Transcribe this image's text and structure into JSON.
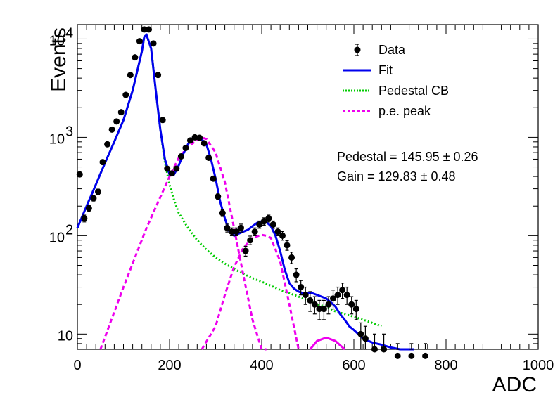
{
  "chart_data": {
    "type": "scatter",
    "xlabel": "ADC",
    "ylabel": "Events",
    "xlim": [
      0,
      1000
    ],
    "ylim": [
      7,
      14000
    ],
    "yscale": "log",
    "grid": false,
    "legend_position": "top-right",
    "x_ticks": [
      0,
      200,
      400,
      600,
      800,
      1000
    ],
    "x_tick_labels": [
      "0",
      "200",
      "400",
      "600",
      "800",
      "1000"
    ],
    "y_tick_labels": [
      {
        "value": 10,
        "mantissa": "10",
        "exponent": ""
      },
      {
        "value": 100,
        "mantissa": "10",
        "exponent": "2"
      },
      {
        "value": 1000,
        "mantissa": "10",
        "exponent": "3"
      },
      {
        "value": 10000,
        "mantissa": "10",
        "exponent": "4"
      }
    ],
    "legend": [
      {
        "label": "Data",
        "style": "marker",
        "color": "#000000"
      },
      {
        "label": "Fit",
        "style": "solid",
        "color": "#0000ee"
      },
      {
        "label": "Pedestal CB",
        "style": "dotted",
        "color": "#00cc00"
      },
      {
        "label": "p.e. peak",
        "style": "dashed",
        "color": "#ee00ee"
      }
    ],
    "annotations": [
      "Pedestal = 145.95 ± 0.26",
      "Gain = 129.83 ± 0.48"
    ],
    "colors": {
      "data": "#000000",
      "fit": "#0000ee",
      "pedestal": "#00cc00",
      "pe": "#ee00ee"
    },
    "data": {
      "x": [
        5,
        15,
        25,
        35,
        45,
        55,
        65,
        75,
        85,
        95,
        105,
        115,
        125,
        135,
        145,
        155,
        165,
        175,
        185,
        195,
        205,
        215,
        225,
        235,
        245,
        255,
        265,
        275,
        285,
        295,
        305,
        315,
        325,
        335,
        345,
        355,
        365,
        375,
        385,
        395,
        405,
        415,
        425,
        435,
        445,
        455,
        465,
        475,
        485,
        495,
        505,
        515,
        525,
        535,
        545,
        555,
        565,
        575,
        585,
        595,
        605,
        615,
        625,
        645,
        665,
        695,
        725,
        755
      ],
      "y": [
        420,
        150,
        190,
        240,
        280,
        560,
        850,
        1200,
        1450,
        1800,
        2700,
        4300,
        6500,
        9500,
        12500,
        12500,
        9000,
        4300,
        1500,
        480,
        430,
        480,
        640,
        780,
        930,
        1000,
        990,
        870,
        620,
        380,
        250,
        170,
        120,
        110,
        110,
        120,
        70,
        90,
        110,
        130,
        140,
        150,
        130,
        110,
        100,
        80,
        60,
        40,
        30,
        25,
        22,
        20,
        18,
        18,
        20,
        23,
        25,
        28,
        25,
        20,
        18,
        10,
        9,
        7,
        7,
        6,
        6,
        6
      ],
      "err": [
        20,
        12,
        14,
        15,
        17,
        24,
        29,
        35,
        38,
        42,
        52,
        66,
        81,
        97,
        112,
        112,
        95,
        66,
        39,
        22,
        21,
        22,
        25,
        28,
        30,
        32,
        31,
        30,
        25,
        19,
        16,
        13,
        11,
        10,
        10,
        11,
        8,
        9,
        10,
        11,
        12,
        12,
        11,
        10,
        10,
        9,
        8,
        6,
        5,
        5,
        5,
        4,
        4,
        4,
        4,
        5,
        5,
        5,
        5,
        4,
        4,
        3,
        3,
        3,
        3,
        2,
        2,
        2
      ]
    },
    "series": [
      {
        "name": "Fit",
        "x": [
          0,
          20,
          40,
          60,
          80,
          100,
          120,
          140,
          145,
          150,
          160,
          170,
          180,
          190,
          200,
          210,
          220,
          230,
          240,
          250,
          260,
          270,
          280,
          290,
          300,
          310,
          320,
          330,
          340,
          350,
          360,
          370,
          380,
          390,
          400,
          410,
          420,
          430,
          440,
          450,
          460,
          470,
          480,
          490,
          500,
          510,
          520,
          530,
          540,
          550,
          560,
          570,
          580,
          590,
          600,
          620,
          640,
          660,
          680,
          700,
          720,
          730
        ],
        "y": [
          120,
          200,
          330,
          550,
          900,
          1500,
          3000,
          7500,
          10500,
          11000,
          8000,
          3000,
          1200,
          600,
          420,
          420,
          520,
          680,
          850,
          980,
          1000,
          950,
          850,
          600,
          380,
          220,
          150,
          110,
          100,
          105,
          110,
          115,
          125,
          135,
          140,
          138,
          125,
          100,
          70,
          45,
          33,
          29,
          27,
          26,
          26,
          26,
          25,
          24,
          23,
          21,
          19,
          16,
          14,
          12,
          11,
          9,
          8.2,
          7.8,
          7.3,
          7,
          6.7,
          6.5
        ]
      },
      {
        "name": "Pedestal CB",
        "x": [
          0,
          20,
          40,
          60,
          80,
          100,
          120,
          140,
          145,
          150,
          160,
          170,
          180,
          190,
          200,
          210,
          220,
          240,
          260,
          280,
          300,
          320,
          340,
          360,
          380,
          400,
          420,
          440,
          460,
          480,
          500,
          520,
          540,
          560,
          580,
          600,
          620,
          640,
          660
        ],
        "y": [
          120,
          200,
          330,
          550,
          900,
          1500,
          3000,
          7500,
          10500,
          11000,
          8000,
          3000,
          1200,
          560,
          330,
          230,
          170,
          120,
          90,
          72,
          60,
          52,
          46,
          41,
          37,
          34,
          31,
          28,
          26,
          24,
          22,
          20,
          19,
          17,
          16,
          15,
          14,
          13,
          12
        ]
      },
      {
        "name": "p.e. peak",
        "curves": [
          {
            "x": [
              50,
              100,
              150,
              200,
              220,
              240,
              260,
              270,
              275,
              280,
              300,
              320,
              340,
              360,
              380,
              400,
              410
            ],
            "y": [
              7,
              30,
              120,
              400,
              620,
              800,
              940,
              980,
              980,
              960,
              700,
              350,
              120,
              40,
              14,
              6.5,
              5
            ]
          },
          {
            "x": [
              270,
              300,
              320,
              340,
              360,
              380,
              400,
              410,
              420,
              440,
              460,
              480
            ],
            "y": [
              5,
              12,
              25,
              48,
              75,
              95,
              102,
              100,
              95,
              55,
              20,
              6.5
            ]
          },
          {
            "x": [
              505,
              520,
              540,
              560,
              580
            ],
            "y": [
              6.5,
              8.5,
              9.2,
              8.5,
              6.5
            ]
          }
        ]
      }
    ]
  }
}
